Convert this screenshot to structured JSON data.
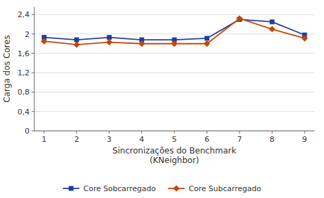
{
  "chart_data": {
    "type": "line",
    "x_label": "Sincronizações do Benchmark\n(KNeighbor)",
    "y_label": "Carga dos Cores",
    "x": [
      1,
      2,
      3,
      4,
      5,
      6,
      7,
      8,
      9
    ],
    "series": [
      {
        "name": "Core Sobcarregado",
        "color": "#1f3f9f",
        "marker": "square",
        "values": [
          1.93,
          1.88,
          1.93,
          1.88,
          1.88,
          1.91,
          2.3,
          2.25,
          1.98
        ]
      },
      {
        "name": "Core Subcarregado",
        "color": "#cc4400",
        "marker": "diamond",
        "values": [
          1.85,
          1.78,
          1.83,
          1.8,
          1.8,
          1.8,
          2.32,
          2.1,
          1.91
        ]
      }
    ],
    "xlim": [
      0.7,
      9.3
    ],
    "xticks": [
      1,
      2,
      3,
      4,
      5,
      6,
      7,
      8,
      9
    ],
    "ylim": [
      0,
      2.56
    ],
    "yticks": [
      0,
      {
        "value": 0.4,
        "label": "0,4"
      },
      {
        "value": 0.8,
        "label": "0,8"
      },
      {
        "value": 1.2,
        "label": "1,2"
      },
      {
        "value": 1.6,
        "label": "1,6"
      },
      2,
      {
        "value": 2.4,
        "label": "2,4"
      }
    ],
    "grid": true,
    "legend": "bottom"
  }
}
